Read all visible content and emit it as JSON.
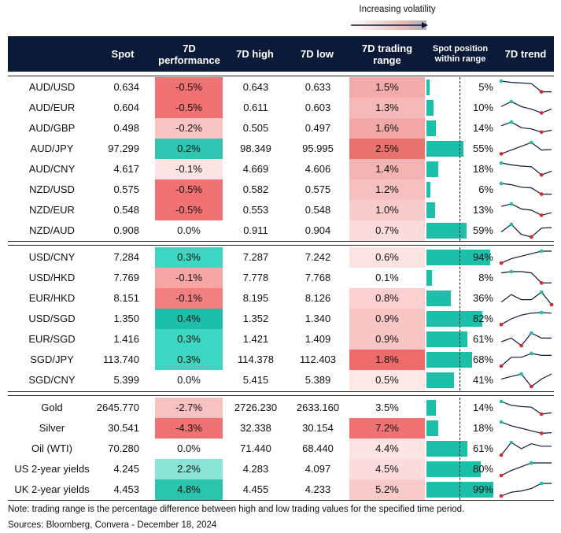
{
  "header": {
    "volatility_label": "Increasing volatility",
    "columns": [
      "Spot",
      "7D performance",
      "7D high",
      "7D low",
      "7D trading range",
      "Spot position within range",
      "7D trend"
    ]
  },
  "groups": [
    {
      "rows": [
        {
          "pair": "AUD/USD",
          "spot": "0.634",
          "perf": "-0.5%",
          "high": "0.643",
          "low": "0.633",
          "range": "1.5%",
          "position": 5,
          "position_label": "5%",
          "perf_color": "#f07272",
          "range_color": "#f3aaaa",
          "trend": [
            100,
            90,
            85,
            80,
            15,
            15
          ]
        },
        {
          "pair": "AUD/EUR",
          "spot": "0.604",
          "perf": "-0.5%",
          "high": "0.611",
          "low": "0.603",
          "range": "1.3%",
          "position": 10,
          "position_label": "10%",
          "perf_color": "#f07272",
          "range_color": "#f6b9b9",
          "trend": [
            60,
            100,
            60,
            40,
            10,
            40
          ]
        },
        {
          "pair": "AUD/GBP",
          "spot": "0.498",
          "perf": "-0.2%",
          "high": "0.505",
          "low": "0.497",
          "range": "1.6%",
          "position": 14,
          "position_label": "14%",
          "perf_color": "#f9c4c4",
          "range_color": "#f3a8a8",
          "trend": [
            70,
            100,
            55,
            45,
            20,
            35
          ]
        },
        {
          "pair": "AUD/JPY",
          "spot": "97.299",
          "perf": "0.2%",
          "high": "98.349",
          "low": "95.995",
          "range": "2.5%",
          "position": 55,
          "position_label": "55%",
          "perf_color": "#2fc7b2",
          "range_color": "#e8736e",
          "trend": [
            10,
            40,
            70,
            100,
            40,
            45
          ]
        },
        {
          "pair": "AUD/CNY",
          "spot": "4.617",
          "perf": "-0.1%",
          "high": "4.669",
          "low": "4.606",
          "range": "1.4%",
          "position": 18,
          "position_label": "18%",
          "perf_color": "#fde4e4",
          "range_color": "#f4b4b4",
          "trend": [
            100,
            85,
            75,
            70,
            5,
            35
          ]
        },
        {
          "pair": "NZD/USD",
          "spot": "0.575",
          "perf": "-0.5%",
          "high": "0.582",
          "low": "0.575",
          "range": "1.2%",
          "position": 6,
          "position_label": "6%",
          "perf_color": "#f07272",
          "range_color": "#f7c0c0",
          "trend": [
            100,
            90,
            70,
            65,
            15,
            15
          ]
        },
        {
          "pair": "NZD/EUR",
          "spot": "0.548",
          "perf": "-0.5%",
          "high": "0.553",
          "low": "0.548",
          "range": "1.0%",
          "position": 13,
          "position_label": "13%",
          "perf_color": "#f07272",
          "range_color": "#f9cccc",
          "trend": [
            80,
            100,
            60,
            50,
            10,
            30
          ]
        },
        {
          "pair": "NZD/AUD",
          "spot": "0.908",
          "perf": "0.0%",
          "high": "0.911",
          "low": "0.904",
          "range": "0.7%",
          "position": 59,
          "position_label": "59%",
          "perf_color": "#ffffff",
          "range_color": "#fbdcdc",
          "trend": [
            40,
            100,
            20,
            0,
            70,
            75
          ]
        }
      ]
    },
    {
      "rows": [
        {
          "pair": "USD/CNY",
          "spot": "7.284",
          "perf": "0.3%",
          "high": "7.287",
          "low": "7.242",
          "range": "0.6%",
          "position": 94,
          "position_label": "94%",
          "perf_color": "#3dd6c0",
          "range_color": "#fde4e4",
          "trend": [
            5,
            40,
            60,
            80,
            100,
            100
          ]
        },
        {
          "pair": "USD/HKD",
          "spot": "7.769",
          "perf": "-0.1%",
          "high": "7.778",
          "low": "7.768",
          "range": "0.1%",
          "position": 8,
          "position_label": "8%",
          "perf_color": "#f7a5a5",
          "range_color": "#ffffff",
          "trend": [
            90,
            100,
            100,
            90,
            10,
            10
          ]
        },
        {
          "pair": "EUR/HKD",
          "spot": "8.151",
          "perf": "-0.1%",
          "high": "8.195",
          "low": "8.126",
          "range": "0.8%",
          "position": 36,
          "position_label": "36%",
          "perf_color": "#f28080",
          "range_color": "#fbd0d0",
          "trend": [
            20,
            80,
            40,
            40,
            100,
            0
          ]
        },
        {
          "pair": "USD/SGD",
          "spot": "1.350",
          "perf": "0.4%",
          "high": "1.352",
          "low": "1.340",
          "range": "0.9%",
          "position": 82,
          "position_label": "82%",
          "perf_color": "#1cbfa8",
          "range_color": "#f9c6c6",
          "trend": [
            5,
            50,
            80,
            95,
            100,
            95
          ]
        },
        {
          "pair": "EUR/SGD",
          "spot": "1.416",
          "perf": "0.3%",
          "high": "1.421",
          "low": "1.409",
          "range": "0.9%",
          "position": 61,
          "position_label": "61%",
          "perf_color": "#3dd6c0",
          "range_color": "#f9c6c6",
          "trend": [
            30,
            60,
            0,
            100,
            60,
            60
          ]
        },
        {
          "pair": "SGD/JPY",
          "spot": "113.740",
          "perf": "0.3%",
          "high": "114.378",
          "low": "112.403",
          "range": "1.8%",
          "position": 68,
          "position_label": "68%",
          "perf_color": "#3dd6c0",
          "range_color": "#ef6b6b",
          "trend": [
            0,
            70,
            70,
            100,
            85,
            85
          ]
        },
        {
          "pair": "SGD/CNY",
          "spot": "5.399",
          "perf": "0.0%",
          "high": "5.415",
          "low": "5.389",
          "range": "0.5%",
          "position": 41,
          "position_label": "41%",
          "perf_color": "#ffffff",
          "range_color": "#fde8e8",
          "trend": [
            60,
            80,
            100,
            0,
            60,
            100
          ]
        }
      ]
    },
    {
      "rows": [
        {
          "pair": "Gold",
          "spot": "2645.770",
          "perf": "-2.7%",
          "high": "2726.230",
          "low": "2633.160",
          "range": "3.5%",
          "position": 14,
          "position_label": "14%",
          "perf_color": "#f9c2c2",
          "range_color": "#ffffff",
          "trend": [
            100,
            70,
            60,
            55,
            0,
            10
          ]
        },
        {
          "pair": "Silver",
          "spot": "30.541",
          "perf": "-4.3%",
          "high": "32.338",
          "low": "30.154",
          "range": "7.2%",
          "position": 18,
          "position_label": "18%",
          "perf_color": "#f07272",
          "range_color": "#f07272",
          "trend": [
            100,
            70,
            50,
            30,
            10,
            15
          ]
        },
        {
          "pair": "Oil (WTI)",
          "spot": "70.280",
          "perf": "0.0%",
          "high": "71.440",
          "low": "68.440",
          "range": "4.4%",
          "position": 61,
          "position_label": "61%",
          "perf_color": "#ffffff",
          "range_color": "#fde4e4",
          "trend": [
            0,
            100,
            50,
            90,
            70,
            70
          ]
        },
        {
          "pair": "US 2-year yields",
          "spot": "4.245",
          "perf": "2.2%",
          "high": "4.283",
          "low": "4.097",
          "range": "4.5%",
          "position": 80,
          "position_label": "80%",
          "perf_color": "#8be3d6",
          "range_color": "#fcdcdc",
          "trend": [
            0,
            40,
            70,
            100,
            100,
            100
          ]
        },
        {
          "pair": "UK 2-year yields",
          "spot": "4.453",
          "perf": "4.8%",
          "high": "4.455",
          "low": "4.233",
          "range": "5.2%",
          "position": 99,
          "position_label": "99%",
          "perf_color": "#2bc5ae",
          "range_color": "#f9caca",
          "trend": [
            0,
            30,
            40,
            60,
            100,
            100
          ]
        }
      ]
    }
  ],
  "notes": [
    "Note: trading range is the percentage difference between high and low trading values for the specified time period.",
    "Sources: Bloomberg, Convera - December 18, 2024"
  ]
}
